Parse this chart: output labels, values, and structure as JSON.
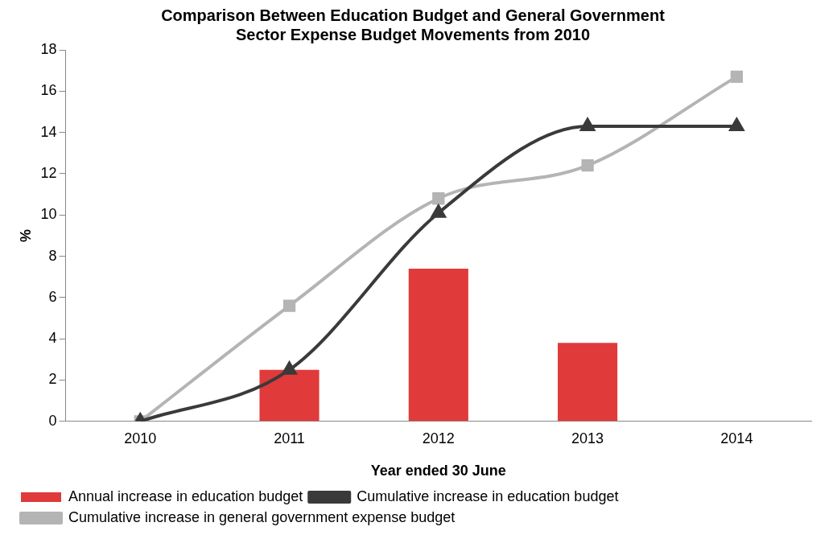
{
  "chart_data": {
    "type": "bar",
    "title": "Comparison Between Education Budget and General Government Sector Expense Budget Movements from 2010",
    "xlabel": "Year ended 30 June",
    "ylabel": "%",
    "categories": [
      "2010",
      "2011",
      "2012",
      "2013",
      "2014"
    ],
    "series": [
      {
        "name": "Annual increase in education budget",
        "color": "#e03a3a",
        "values": [
          null,
          2.5,
          7.4,
          3.8,
          null
        ]
      },
      {
        "name": "Cumulative increase in education budget",
        "type": "line",
        "color": "#3a3a3a",
        "marker": "triangle",
        "values": [
          0,
          2.5,
          10.1,
          14.3,
          14.3
        ]
      },
      {
        "name": "Cumulative increase in general government expense budget",
        "type": "line",
        "color": "#b4b4b4",
        "marker": "square",
        "values": [
          0,
          5.6,
          10.8,
          12.4,
          16.7
        ]
      }
    ],
    "ylim": [
      0,
      18
    ],
    "yticks": [
      0,
      2,
      4,
      6,
      8,
      10,
      12,
      14,
      16,
      18
    ],
    "grid": false,
    "legend": "bottom"
  }
}
